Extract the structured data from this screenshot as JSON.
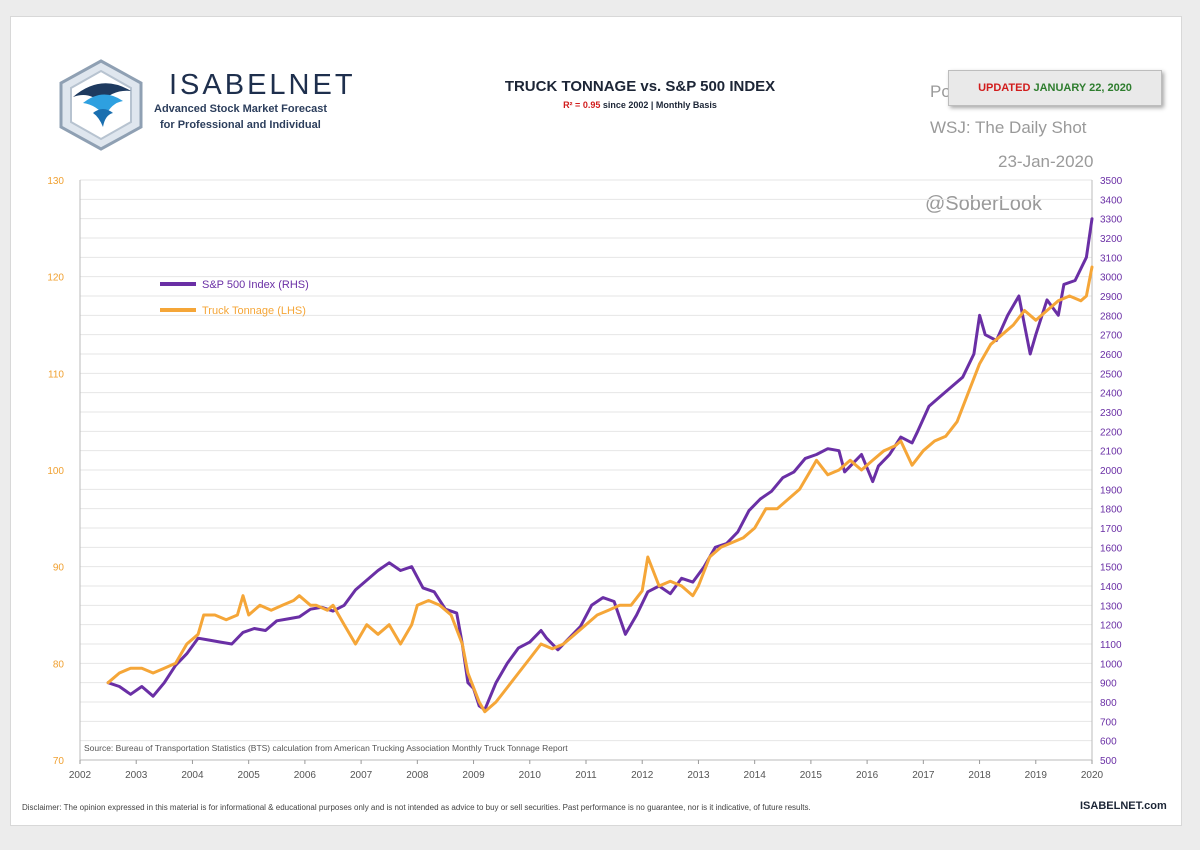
{
  "brand": {
    "name": "ISABELNET",
    "tagline_1": "Advanced Stock Market Forecast",
    "tagline_2": "for Professional and Individual"
  },
  "watermark": {
    "posted_on": "Posted on",
    "source": "WSJ: The Daily Shot",
    "date": "23-Jan-2020",
    "handle": "@SoberLook"
  },
  "updated_badge": {
    "label": "UPDATED",
    "date": "JANUARY 22, 2020"
  },
  "footer": {
    "disclaimer": "Disclaimer: The opinion expressed in this material is for informational & educational purposes only and is not intended as advice to buy or sell securities. Past performance is no guarantee, nor is it indicative, of future results.",
    "brand": "ISABELNET.com"
  },
  "colors": {
    "sp500": "#6a2fa5",
    "truck": "#f5a638",
    "left_axis": "#f0a030",
    "right_axis": "#6a2fa5",
    "grid": "#e6e6e6"
  },
  "chart_data": {
    "type": "line",
    "title": "TRUCK TONNAGE vs. S&P 500 INDEX",
    "subtitle_r2": "R² = 0.95",
    "subtitle_rest": "since 2002 | Monthly Basis",
    "source": "Source: Bureau of Transportation Statistics (BTS) calculation from American Trucking Association Monthly Truck Tonnage Report",
    "xlim": [
      2002,
      2020
    ],
    "x_ticks": [
      2002,
      2003,
      2004,
      2005,
      2006,
      2007,
      2008,
      2009,
      2010,
      2011,
      2012,
      2013,
      2014,
      2015,
      2016,
      2017,
      2018,
      2019,
      2020
    ],
    "ylim_left": [
      70,
      130
    ],
    "y_ticks_left": [
      70,
      80,
      90,
      100,
      110,
      120,
      130
    ],
    "ylim_right": [
      500,
      3500
    ],
    "y_ticks_right": [
      500,
      600,
      700,
      800,
      900,
      1000,
      1100,
      1200,
      1300,
      1400,
      1500,
      1600,
      1700,
      1800,
      1900,
      2000,
      2100,
      2200,
      2300,
      2400,
      2500,
      2600,
      2700,
      2800,
      2900,
      3000,
      3100,
      3200,
      3300,
      3400,
      3500
    ],
    "legend_position": "upper-left",
    "series": [
      {
        "name": "S&P 500 Index (RHS)",
        "axis": "right",
        "points": [
          [
            2002.5,
            900
          ],
          [
            2002.7,
            880
          ],
          [
            2002.9,
            840
          ],
          [
            2003.1,
            880
          ],
          [
            2003.3,
            830
          ],
          [
            2003.5,
            900
          ],
          [
            2003.7,
            990
          ],
          [
            2003.9,
            1050
          ],
          [
            2004.1,
            1130
          ],
          [
            2004.3,
            1120
          ],
          [
            2004.5,
            1110
          ],
          [
            2004.7,
            1100
          ],
          [
            2004.9,
            1160
          ],
          [
            2005.1,
            1180
          ],
          [
            2005.3,
            1170
          ],
          [
            2005.5,
            1220
          ],
          [
            2005.7,
            1230
          ],
          [
            2005.9,
            1240
          ],
          [
            2006.1,
            1280
          ],
          [
            2006.3,
            1290
          ],
          [
            2006.5,
            1270
          ],
          [
            2006.7,
            1300
          ],
          [
            2006.9,
            1380
          ],
          [
            2007.1,
            1430
          ],
          [
            2007.3,
            1480
          ],
          [
            2007.5,
            1520
          ],
          [
            2007.7,
            1480
          ],
          [
            2007.9,
            1500
          ],
          [
            2008.1,
            1390
          ],
          [
            2008.3,
            1370
          ],
          [
            2008.5,
            1280
          ],
          [
            2008.7,
            1260
          ],
          [
            2008.8,
            1100
          ],
          [
            2008.9,
            900
          ],
          [
            2009.0,
            870
          ],
          [
            2009.1,
            780
          ],
          [
            2009.2,
            760
          ],
          [
            2009.4,
            900
          ],
          [
            2009.6,
            1000
          ],
          [
            2009.8,
            1080
          ],
          [
            2010.0,
            1110
          ],
          [
            2010.2,
            1170
          ],
          [
            2010.3,
            1130
          ],
          [
            2010.5,
            1070
          ],
          [
            2010.7,
            1130
          ],
          [
            2010.9,
            1190
          ],
          [
            2011.1,
            1300
          ],
          [
            2011.3,
            1340
          ],
          [
            2011.5,
            1320
          ],
          [
            2011.7,
            1150
          ],
          [
            2011.9,
            1250
          ],
          [
            2012.1,
            1370
          ],
          [
            2012.3,
            1400
          ],
          [
            2012.5,
            1360
          ],
          [
            2012.7,
            1440
          ],
          [
            2012.9,
            1420
          ],
          [
            2013.1,
            1500
          ],
          [
            2013.3,
            1600
          ],
          [
            2013.5,
            1620
          ],
          [
            2013.7,
            1680
          ],
          [
            2013.9,
            1790
          ],
          [
            2014.1,
            1850
          ],
          [
            2014.3,
            1890
          ],
          [
            2014.5,
            1960
          ],
          [
            2014.7,
            1990
          ],
          [
            2014.9,
            2060
          ],
          [
            2015.1,
            2080
          ],
          [
            2015.3,
            2110
          ],
          [
            2015.5,
            2100
          ],
          [
            2015.6,
            1990
          ],
          [
            2015.8,
            2050
          ],
          [
            2015.9,
            2080
          ],
          [
            2016.1,
            1940
          ],
          [
            2016.2,
            2020
          ],
          [
            2016.4,
            2080
          ],
          [
            2016.6,
            2170
          ],
          [
            2016.8,
            2140
          ],
          [
            2016.9,
            2200
          ],
          [
            2017.1,
            2330
          ],
          [
            2017.3,
            2380
          ],
          [
            2017.5,
            2430
          ],
          [
            2017.7,
            2480
          ],
          [
            2017.9,
            2600
          ],
          [
            2018.0,
            2800
          ],
          [
            2018.1,
            2700
          ],
          [
            2018.3,
            2670
          ],
          [
            2018.5,
            2800
          ],
          [
            2018.7,
            2900
          ],
          [
            2018.8,
            2750
          ],
          [
            2018.9,
            2600
          ],
          [
            2019.0,
            2700
          ],
          [
            2019.2,
            2880
          ],
          [
            2019.4,
            2800
          ],
          [
            2019.5,
            2960
          ],
          [
            2019.7,
            2980
          ],
          [
            2019.9,
            3100
          ],
          [
            2020.0,
            3300
          ]
        ]
      },
      {
        "name": "Truck Tonnage (LHS)",
        "axis": "left",
        "points": [
          [
            2002.5,
            78
          ],
          [
            2002.7,
            79
          ],
          [
            2002.9,
            79.5
          ],
          [
            2003.1,
            79.5
          ],
          [
            2003.3,
            79
          ],
          [
            2003.5,
            79.5
          ],
          [
            2003.7,
            80
          ],
          [
            2003.9,
            82
          ],
          [
            2004.1,
            83
          ],
          [
            2004.2,
            85
          ],
          [
            2004.4,
            85
          ],
          [
            2004.6,
            84.5
          ],
          [
            2004.8,
            85
          ],
          [
            2004.9,
            87
          ],
          [
            2005.0,
            85
          ],
          [
            2005.2,
            86
          ],
          [
            2005.4,
            85.5
          ],
          [
            2005.6,
            86
          ],
          [
            2005.8,
            86.5
          ],
          [
            2005.9,
            87
          ],
          [
            2006.1,
            86
          ],
          [
            2006.2,
            86
          ],
          [
            2006.4,
            85.5
          ],
          [
            2006.5,
            86
          ],
          [
            2006.7,
            84
          ],
          [
            2006.9,
            82
          ],
          [
            2007.1,
            84
          ],
          [
            2007.3,
            83
          ],
          [
            2007.5,
            84
          ],
          [
            2007.7,
            82
          ],
          [
            2007.9,
            84
          ],
          [
            2008.0,
            86
          ],
          [
            2008.2,
            86.5
          ],
          [
            2008.4,
            86
          ],
          [
            2008.6,
            85
          ],
          [
            2008.8,
            82
          ],
          [
            2008.9,
            79
          ],
          [
            2009.1,
            76
          ],
          [
            2009.2,
            75
          ],
          [
            2009.4,
            76
          ],
          [
            2009.6,
            77.5
          ],
          [
            2009.8,
            79
          ],
          [
            2010.0,
            80.5
          ],
          [
            2010.2,
            82
          ],
          [
            2010.4,
            81.5
          ],
          [
            2010.6,
            82
          ],
          [
            2010.8,
            83
          ],
          [
            2011.0,
            84
          ],
          [
            2011.2,
            85
          ],
          [
            2011.4,
            85.5
          ],
          [
            2011.6,
            86
          ],
          [
            2011.8,
            86
          ],
          [
            2012.0,
            87.5
          ],
          [
            2012.1,
            91
          ],
          [
            2012.3,
            88
          ],
          [
            2012.5,
            88.5
          ],
          [
            2012.7,
            88
          ],
          [
            2012.9,
            87
          ],
          [
            2013.0,
            88
          ],
          [
            2013.2,
            91
          ],
          [
            2013.4,
            92
          ],
          [
            2013.6,
            92.5
          ],
          [
            2013.8,
            93
          ],
          [
            2014.0,
            94
          ],
          [
            2014.2,
            96
          ],
          [
            2014.4,
            96
          ],
          [
            2014.6,
            97
          ],
          [
            2014.8,
            98
          ],
          [
            2015.0,
            100
          ],
          [
            2015.1,
            101
          ],
          [
            2015.3,
            99.5
          ],
          [
            2015.5,
            100
          ],
          [
            2015.7,
            101
          ],
          [
            2015.9,
            100
          ],
          [
            2016.1,
            101
          ],
          [
            2016.3,
            102
          ],
          [
            2016.5,
            102.5
          ],
          [
            2016.6,
            103
          ],
          [
            2016.8,
            100.5
          ],
          [
            2017.0,
            102
          ],
          [
            2017.2,
            103
          ],
          [
            2017.4,
            103.5
          ],
          [
            2017.6,
            105
          ],
          [
            2017.8,
            108
          ],
          [
            2018.0,
            111
          ],
          [
            2018.1,
            112
          ],
          [
            2018.2,
            113
          ],
          [
            2018.4,
            114
          ],
          [
            2018.6,
            115
          ],
          [
            2018.8,
            116.5
          ],
          [
            2019.0,
            115.5
          ],
          [
            2019.2,
            116.5
          ],
          [
            2019.4,
            117.5
          ],
          [
            2019.6,
            118
          ],
          [
            2019.8,
            117.5
          ],
          [
            2019.9,
            118
          ],
          [
            2020.0,
            121
          ]
        ]
      }
    ]
  }
}
